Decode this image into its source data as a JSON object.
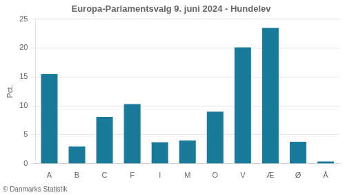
{
  "chart_data": {
    "type": "bar",
    "title": "Europa-Parlamentsvalg 9. juni 2024 - Hundelev",
    "categories": [
      "A",
      "B",
      "C",
      "F",
      "I",
      "M",
      "O",
      "V",
      "Æ",
      "Ø",
      "Å"
    ],
    "values": [
      15.5,
      3.0,
      8.1,
      10.3,
      3.7,
      4.0,
      9.0,
      20.1,
      23.5,
      3.8,
      0.4
    ],
    "color": "#1a7a9a",
    "ylabel": "Pct.",
    "footnote": "© Danmarks Statistik",
    "ylim": [
      0,
      25
    ],
    "yticks": [
      0,
      5,
      10,
      15,
      20,
      25
    ],
    "grid": true
  }
}
